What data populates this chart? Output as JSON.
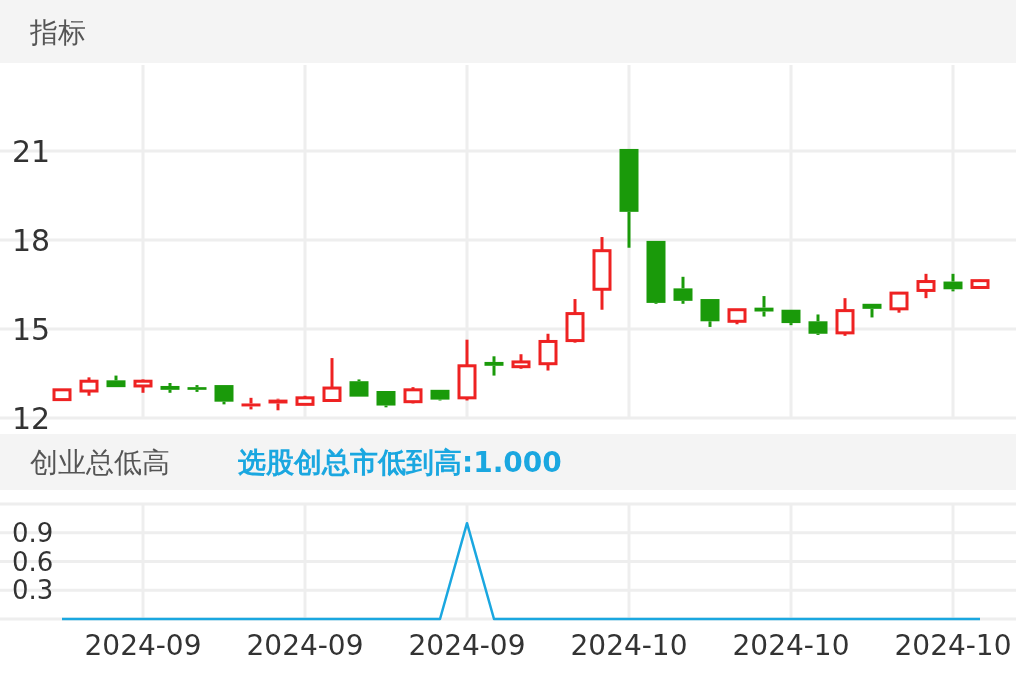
{
  "chart_data": [
    {
      "type": "candlestick",
      "title": "指标",
      "categories": [
        null,
        null,
        null,
        "2024-09",
        null,
        null,
        null,
        null,
        null,
        "2024-09",
        null,
        null,
        null,
        null,
        null,
        "2024-09",
        null,
        null,
        null,
        null,
        null,
        "2024-10",
        null,
        null,
        null,
        null,
        null,
        "2024-10",
        null,
        null,
        null,
        null,
        null,
        "2024-10",
        null
      ],
      "ohlc": [
        [
          12.62,
          12.95,
          12.62,
          12.95
        ],
        [
          12.91,
          13.37,
          12.75,
          13.24
        ],
        [
          13.27,
          13.43,
          13.04,
          13.04
        ],
        [
          13.08,
          13.3,
          12.85,
          13.24
        ],
        [
          13.08,
          13.18,
          12.85,
          12.95
        ],
        [
          13.04,
          13.11,
          12.88,
          12.95
        ],
        [
          13.11,
          13.11,
          12.46,
          12.55
        ],
        [
          12.39,
          12.68,
          12.29,
          12.49
        ],
        [
          12.49,
          12.65,
          12.26,
          12.62
        ],
        [
          12.46,
          12.75,
          12.46,
          12.68
        ],
        [
          12.59,
          14.02,
          12.59,
          13.01
        ],
        [
          13.24,
          13.3,
          12.72,
          12.72
        ],
        [
          12.91,
          12.91,
          12.36,
          12.42
        ],
        [
          12.55,
          13.04,
          12.49,
          12.95
        ],
        [
          12.95,
          12.95,
          12.59,
          12.62
        ],
        [
          12.68,
          14.64,
          12.59,
          13.76
        ],
        [
          13.89,
          14.08,
          13.43,
          13.76
        ],
        [
          13.73,
          14.15,
          13.66,
          13.89
        ],
        [
          13.83,
          14.84,
          13.6,
          14.58
        ],
        [
          14.61,
          16.01,
          14.54,
          15.52
        ],
        [
          16.34,
          18.1,
          15.65,
          17.64
        ],
        [
          21.07,
          21.07,
          17.74,
          18.95
        ],
        [
          17.97,
          17.97,
          15.85,
          15.88
        ],
        [
          16.37,
          16.76,
          15.85,
          15.95
        ],
        [
          16.01,
          16.01,
          15.07,
          15.26
        ],
        [
          15.26,
          15.65,
          15.16,
          15.65
        ],
        [
          15.72,
          16.11,
          15.42,
          15.59
        ],
        [
          15.65,
          15.65,
          15.13,
          15.2
        ],
        [
          15.26,
          15.49,
          14.8,
          14.84
        ],
        [
          14.87,
          16.04,
          14.77,
          15.62
        ],
        [
          15.85,
          15.85,
          15.39,
          15.68
        ],
        [
          15.68,
          16.21,
          15.55,
          16.21
        ],
        [
          16.3,
          16.86,
          16.04,
          16.6
        ],
        [
          16.6,
          16.86,
          16.27,
          16.34
        ],
        [
          16.4,
          16.66,
          16.4,
          16.63
        ]
      ],
      "colors": [
        "#ee2222",
        "#ee2222",
        "#1a9a0a",
        "#ee2222",
        "#1a9a0a",
        "#1a9a0a",
        "#1a9a0a",
        "#ee2222",
        "#ee2222",
        "#ee2222",
        "#ee2222",
        "#1a9a0a",
        "#1a9a0a",
        "#ee2222",
        "#1a9a0a",
        "#ee2222",
        "#1a9a0a",
        "#ee2222",
        "#ee2222",
        "#ee2222",
        "#ee2222",
        "#1a9a0a",
        "#1a9a0a",
        "#1a9a0a",
        "#1a9a0a",
        "#ee2222",
        "#1a9a0a",
        "#1a9a0a",
        "#1a9a0a",
        "#ee2222",
        "#1a9a0a",
        "#ee2222",
        "#ee2222",
        "#1a9a0a",
        "#ee2222"
      ],
      "ylim": [
        12,
        23.9
      ],
      "yticks": [
        12,
        15,
        18,
        21
      ],
      "grid": true,
      "tick_labels": "y"
    },
    {
      "type": "line",
      "title": "创业总低高",
      "categories": [
        null,
        null,
        null,
        "2024-09",
        null,
        null,
        null,
        null,
        null,
        "2024-09",
        null,
        null,
        null,
        null,
        null,
        "2024-09",
        null,
        null,
        null,
        null,
        null,
        "2024-10",
        null,
        null,
        null,
        null,
        null,
        "2024-10",
        null,
        null,
        null,
        null,
        null,
        "2024-10",
        null
      ],
      "series": [
        {
          "name": "选股创总市低到高:1.000",
          "color": "#1aa7e0",
          "values": [
            0,
            0,
            0,
            0,
            0,
            0,
            0,
            0,
            0,
            0,
            0,
            0,
            0,
            0,
            0,
            1,
            0,
            0,
            0,
            0,
            0,
            0,
            0,
            0,
            0,
            0,
            0,
            0,
            0,
            0,
            0,
            0,
            0,
            0,
            0
          ]
        }
      ],
      "ylim": [
        0,
        1.2
      ],
      "yticks": [
        {
          "value": 0,
          "label": null
        },
        0.3,
        0.6,
        0.9,
        {
          "value": 1.2,
          "label": null
        }
      ],
      "grid": true,
      "legend": "top left"
    }
  ]
}
